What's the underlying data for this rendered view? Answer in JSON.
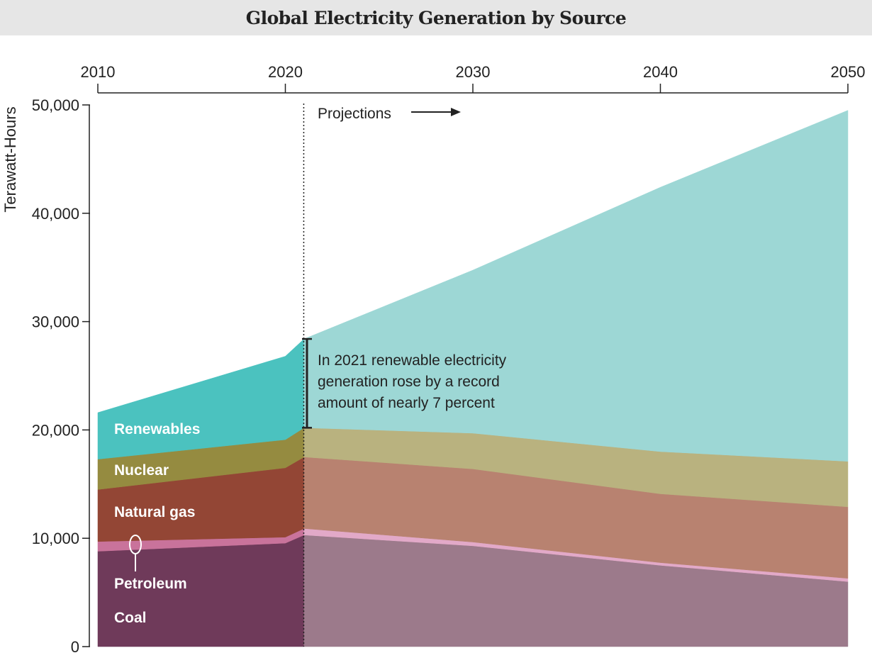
{
  "title": "Global Electricity Generation by Source",
  "chart_data": {
    "type": "area",
    "stacked": true,
    "title": "Global Electricity Generation by Source",
    "xlabel": "",
    "ylabel": "Terawatt-Hours",
    "x": [
      2010,
      2020,
      2021,
      2030,
      2040,
      2050
    ],
    "x_ticks": [
      "2010",
      "2020",
      "2030",
      "2040",
      "2050"
    ],
    "x_axis_position": "top",
    "y_ticks": [
      "0",
      "10,000",
      "20,000",
      "30,000",
      "40,000",
      "50,000"
    ],
    "ylim": [
      0,
      50000
    ],
    "xlim": [
      2010,
      2050
    ],
    "grid": false,
    "projection_start": 2021,
    "projection_label": "Projections",
    "annotation": "In 2021 renewable electricity generation rose by a record amount of nearly 7 percent",
    "annotation_lines": [
      "In 2021 renewable electricity",
      "generation rose by a record",
      "amount of nearly 7 percent"
    ],
    "series": [
      {
        "name": "Coal",
        "values": [
          8800,
          9550,
          10300,
          9300,
          7500,
          6000
        ],
        "color": "#6f3a5a",
        "projected_color": "#9c7a8b"
      },
      {
        "name": "Petroleum",
        "values": [
          900,
          550,
          600,
          350,
          250,
          300
        ],
        "color": "#c9739b",
        "projected_color": "#e2a9c8"
      },
      {
        "name": "Natural gas",
        "values": [
          4800,
          6400,
          6600,
          6750,
          6350,
          6600
        ],
        "color": "#934635",
        "projected_color": "#b88270"
      },
      {
        "name": "Nuclear",
        "values": [
          2800,
          2600,
          2700,
          3300,
          3900,
          4200
        ],
        "color": "#958b40",
        "projected_color": "#b9b27f"
      },
      {
        "name": "Renewables",
        "values": [
          4300,
          7700,
          8200,
          15050,
          24400,
          32400
        ],
        "color": "#4bc2bf",
        "projected_color": "#9dd7d5"
      }
    ]
  }
}
